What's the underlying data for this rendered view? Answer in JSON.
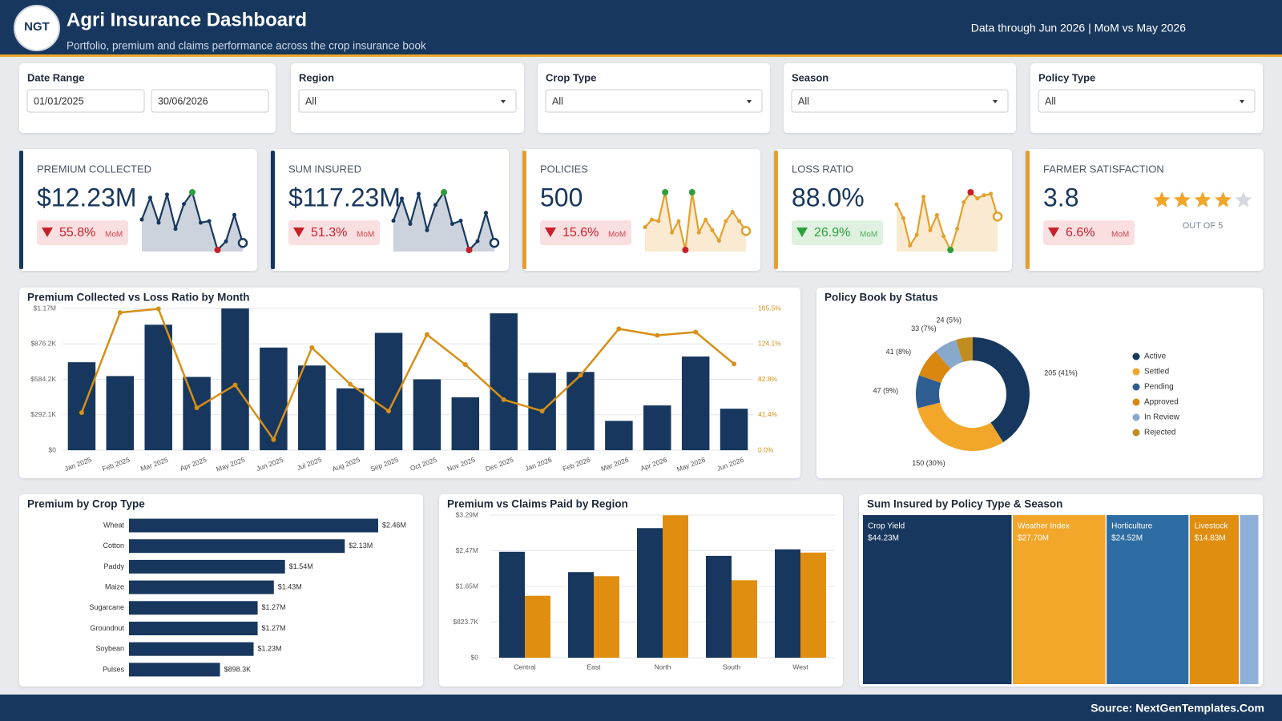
{
  "header": {
    "logo": "NGT",
    "title": "Agri Insurance Dashboard",
    "subtitle": "Portfolio, premium and claims performance across the crop insurance book",
    "note": "Data through Jun 2026 | MoM vs May 2026"
  },
  "filters": [
    {
      "label": "Date Range",
      "values": [
        "01/01/2025",
        "30/06/2026"
      ]
    },
    {
      "label": "Region",
      "value": "All"
    },
    {
      "label": "Crop Type",
      "value": "All"
    },
    {
      "label": "Season",
      "value": "All"
    },
    {
      "label": "Policy Type",
      "value": "All"
    }
  ],
  "kpis": [
    {
      "label": "PREMIUM COLLECTED",
      "value": "$12.23M",
      "change": "55.8%",
      "direction": "down",
      "change_note": "MoM",
      "accent": "#17375e",
      "higher_is_better": true,
      "sparkline": [
        42,
        70,
        38,
        74,
        30,
        62,
        77,
        38,
        40,
        3,
        14,
        48,
        12
      ]
    },
    {
      "label": "SUM INSURED",
      "value": "$117.23M",
      "change": "51.3%",
      "direction": "down",
      "change_note": "MoM",
      "accent": "#17375e",
      "higher_is_better": true,
      "sparkline": [
        40,
        68,
        36,
        74,
        28,
        60,
        76,
        36,
        40,
        3,
        14,
        50,
        12
      ]
    },
    {
      "label": "POLICIES",
      "value": "500",
      "change": "15.6%",
      "direction": "down",
      "change_note": "MoM",
      "accent": "#e3a02e",
      "higher_is_better": true,
      "sparkline": [
        32,
        42,
        40,
        78,
        25,
        40,
        2,
        78,
        25,
        42,
        28,
        14,
        40,
        52,
        40,
        27
      ]
    },
    {
      "label": "LOSS RATIO",
      "value": "88.0%",
      "change": "26.9%",
      "direction": "down",
      "change_note": "MoM",
      "accent": "#e3a02e",
      "higher_is_better": false,
      "sparkline": [
        62,
        44,
        8,
        22,
        72,
        28,
        48,
        20,
        2,
        30,
        65,
        78,
        70,
        74,
        76,
        46
      ]
    },
    {
      "label": "FARMER SATISFACTION",
      "value": 3.8,
      "change": "6.6%",
      "direction": "down",
      "change_note": "MoM",
      "accent": "#e3a02e",
      "higher_is_better": true,
      "scale_label": "OUT OF 5"
    }
  ],
  "chart_data": [
    {
      "type": "combo",
      "title": "Premium Collected vs Loss Ratio by Month",
      "categories": [
        "Jan 2025",
        "Feb 2025",
        "Mar 2025",
        "Apr 2025",
        "May 2025",
        "Jun 2025",
        "Jul 2025",
        "Aug 2025",
        "Sep 2025",
        "Oct 2025",
        "Nov 2025",
        "Dec 2025",
        "Jan 2026",
        "Feb 2026",
        "Mar 2026",
        "Apr 2026",
        "May 2026",
        "Jun 2026"
      ],
      "series": [
        {
          "type": "bar",
          "color": "#17375e",
          "values": [
            725000,
            611000,
            1034000,
            604000,
            1168000,
            846000,
            698000,
            510000,
            967000,
            584000,
            436000,
            1128000,
            638000,
            645000,
            242000,
            369000,
            772000,
            342000
          ]
        },
        {
          "type": "line",
          "axis": "y2",
          "color": "#d68f17",
          "values": [
            43.8,
            160.7,
            165,
            49.5,
            76.1,
            12.4,
            119.8,
            77,
            45.7,
            135,
            99.9,
            59,
            45.7,
            87.5,
            141.7,
            134.1,
            137.9,
            100.8
          ]
        }
      ],
      "ylim": [
        0,
        1168300
      ],
      "yticks": [
        {
          "value": 0,
          "label": "$0"
        },
        {
          "value": 292075,
          "label": "$292.1K"
        },
        {
          "value": 584150,
          "label": "$584.2K"
        },
        {
          "value": 876225,
          "label": "$876.2K"
        },
        {
          "value": 1168300,
          "label": "$1.17M"
        }
      ],
      "y2lim": [
        0,
        165.5
      ],
      "y2ticks": [
        {
          "value": 0,
          "label": "0.0%"
        },
        {
          "value": 41.375,
          "label": "41.4%"
        },
        {
          "value": 82.75,
          "label": "82.8%"
        },
        {
          "value": 124.125,
          "label": "124.1%"
        },
        {
          "value": 165.5,
          "label": "165.5%"
        }
      ],
      "grid": true
    },
    {
      "type": "donut",
      "title": "Policy Book by Status",
      "categories": [
        "Active",
        "Settled",
        "Pending",
        "Approved",
        "In Review",
        "Rejected"
      ],
      "values": [
        205,
        150,
        47,
        41,
        33,
        24
      ],
      "value_labels": [
        "205 (41%)",
        "150 (30%)",
        "47 (9%)",
        "41 (8%)",
        "33 (7%)",
        "24 (5%)"
      ],
      "colors": [
        "#17375e",
        "#f2a62a",
        "#2e5e91",
        "#d9870f",
        "#88a8cc",
        "#c08d20"
      ],
      "legend": "right"
    },
    {
      "type": "hbar",
      "title": "Premium by Crop Type",
      "categories": [
        "Wheat",
        "Cotton",
        "Paddy",
        "Maize",
        "Sugarcane",
        "Groundnut",
        "Soybean",
        "Pulses"
      ],
      "values": [
        2460000,
        2130000,
        1540000,
        1430000,
        1270000,
        1270000,
        1230000,
        898300
      ],
      "value_labels": [
        "$2.46M",
        "$2.13M",
        "$1.54M",
        "$1.43M",
        "$1.27M",
        "$1.27M",
        "$1.23M",
        "$898.3K"
      ],
      "color": "#17375e"
    },
    {
      "type": "grouped_bar",
      "title": "Premium vs Claims Paid by Region",
      "categories": [
        "Central",
        "East",
        "North",
        "South",
        "West"
      ],
      "series": [
        {
          "color": "#17375e",
          "values": [
            2447000,
            1977000,
            2994000,
            2353000,
            2504000
          ]
        },
        {
          "color": "#e08e10",
          "values": [
            1431000,
            1883000,
            3290000,
            1789000,
            2429000
          ]
        }
      ],
      "ylim": [
        0,
        3294800
      ],
      "yticks": [
        {
          "value": 0,
          "label": "$0"
        },
        {
          "value": 823700,
          "label": "$823.7K"
        },
        {
          "value": 1647400,
          "label": "$1.65M"
        },
        {
          "value": 2471100,
          "label": "$2.47M"
        },
        {
          "value": 3294800,
          "label": "$3.29M"
        }
      ],
      "grid": true
    },
    {
      "type": "treemap",
      "title": "Sum Insured by Policy Type & Season",
      "categories": [
        "Crop Yield",
        "Weather Index",
        "Horticulture",
        "Livestock",
        null
      ],
      "values": [
        44230000,
        27700000,
        24520000,
        14830000,
        5800000
      ],
      "value_labels": [
        "$44.23M",
        "$27.70M",
        "$24.52M",
        "$14.83M",
        null
      ],
      "colors": [
        "#17375e",
        "#f2a62a",
        "#2e6da4",
        "#e08e10",
        "#8fb0d6"
      ]
    }
  ],
  "footer": {
    "source": "Source: NextGenTemplates.Com"
  }
}
